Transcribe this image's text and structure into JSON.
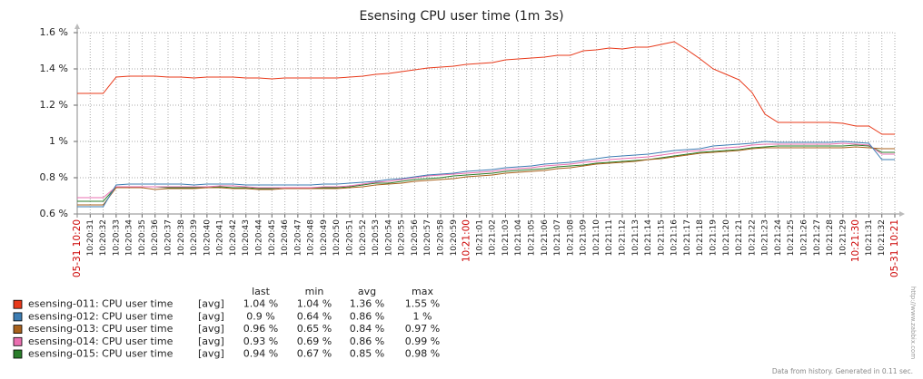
{
  "chart_data": {
    "type": "line",
    "title": "Esensing CPU user time (1m 3s)",
    "categories": [
      "05-31 10:20",
      "10:20:31",
      "10:20:32",
      "10:20:33",
      "10:20:34",
      "10:20:35",
      "10:20:36",
      "10:20:37",
      "10:20:38",
      "10:20:39",
      "10:20:40",
      "10:20:41",
      "10:20:42",
      "10:20:43",
      "10:20:44",
      "10:20:45",
      "10:20:46",
      "10:20:47",
      "10:20:48",
      "10:20:49",
      "10:20:50",
      "10:20:51",
      "10:20:52",
      "10:20:53",
      "10:20:54",
      "10:20:55",
      "10:20:56",
      "10:20:57",
      "10:20:58",
      "10:20:59",
      "10:21:00",
      "10:21:01",
      "10:21:02",
      "10:21:03",
      "10:21:04",
      "10:21:05",
      "10:21:06",
      "10:21:07",
      "10:21:08",
      "10:21:09",
      "10:21:10",
      "10:21:11",
      "10:21:12",
      "10:21:13",
      "10:21:14",
      "10:21:15",
      "10:21:16",
      "10:21:17",
      "10:21:18",
      "10:21:19",
      "10:21:20",
      "10:21:21",
      "10:21:22",
      "10:21:23",
      "10:21:24",
      "10:21:25",
      "10:21:26",
      "10:21:27",
      "10:21:28",
      "10:21:29",
      "10:21:30",
      "10:21:31",
      "10:21:32",
      "05-31 10:21"
    ],
    "ylim": [
      0.6,
      1.6
    ],
    "yticks": [
      {
        "value": 0.6,
        "label": "0.6 %"
      },
      {
        "value": 0.8,
        "label": "0.8 %"
      },
      {
        "value": 1,
        "label": "1 %"
      },
      {
        "value": 1.2,
        "label": "1.2 %"
      },
      {
        "value": 1.4,
        "label": "1.4 %"
      },
      {
        "value": 1.6,
        "label": "1.6 %"
      }
    ],
    "grid": true,
    "stats_columns": [
      "last",
      "min",
      "avg",
      "max"
    ],
    "series": [
      {
        "name": "esensing-011: CPU user time",
        "color": "#e8391a",
        "func": "[avg]",
        "stats": [
          "1.04 %",
          "1.04 %",
          "1.36 %",
          "1.55 %"
        ],
        "values": [
          1.265,
          1.265,
          1.265,
          1.355,
          1.36,
          1.36,
          1.36,
          1.355,
          1.355,
          1.35,
          1.355,
          1.355,
          1.355,
          1.35,
          1.35,
          1.345,
          1.35,
          1.35,
          1.35,
          1.35,
          1.35,
          1.355,
          1.36,
          1.37,
          1.375,
          1.385,
          1.395,
          1.405,
          1.41,
          1.415,
          1.425,
          1.43,
          1.435,
          1.45,
          1.455,
          1.46,
          1.465,
          1.475,
          1.475,
          1.5,
          1.505,
          1.515,
          1.51,
          1.52,
          1.52,
          1.535,
          1.55,
          1.505,
          1.455,
          1.4,
          1.37,
          1.34,
          1.27,
          1.15,
          1.105,
          1.105,
          1.105,
          1.105,
          1.105,
          1.1,
          1.085,
          1.085,
          1.04,
          1.04
        ]
      },
      {
        "name": "esensing-012: CPU user time",
        "color": "#3d7db3",
        "func": "[avg]",
        "stats": [
          "0.9 %",
          "0.64 %",
          "0.86 %",
          "1 %"
        ],
        "values": [
          0.64,
          0.64,
          0.64,
          0.76,
          0.765,
          0.765,
          0.765,
          0.765,
          0.765,
          0.76,
          0.765,
          0.765,
          0.765,
          0.76,
          0.76,
          0.76,
          0.76,
          0.76,
          0.76,
          0.765,
          0.765,
          0.77,
          0.775,
          0.78,
          0.79,
          0.795,
          0.805,
          0.815,
          0.82,
          0.825,
          0.835,
          0.84,
          0.845,
          0.855,
          0.86,
          0.865,
          0.875,
          0.88,
          0.885,
          0.895,
          0.905,
          0.915,
          0.92,
          0.925,
          0.93,
          0.94,
          0.95,
          0.955,
          0.96,
          0.975,
          0.98,
          0.985,
          0.99,
          1,
          0.995,
          0.995,
          0.995,
          0.995,
          0.995,
          1,
          0.995,
          0.99,
          0.9,
          0.9
        ]
      },
      {
        "name": "esensing-013: CPU user time",
        "color": "#a8611c",
        "func": "[avg]",
        "stats": [
          "0.96 %",
          "0.65 %",
          "0.84 %",
          "0.97 %"
        ],
        "values": [
          0.65,
          0.65,
          0.65,
          0.745,
          0.745,
          0.745,
          0.735,
          0.74,
          0.74,
          0.74,
          0.745,
          0.745,
          0.74,
          0.74,
          0.735,
          0.735,
          0.74,
          0.74,
          0.74,
          0.74,
          0.74,
          0.745,
          0.75,
          0.76,
          0.765,
          0.77,
          0.78,
          0.785,
          0.79,
          0.795,
          0.805,
          0.81,
          0.815,
          0.825,
          0.83,
          0.835,
          0.84,
          0.85,
          0.855,
          0.865,
          0.875,
          0.88,
          0.885,
          0.89,
          0.9,
          0.905,
          0.915,
          0.925,
          0.935,
          0.94,
          0.945,
          0.95,
          0.96,
          0.965,
          0.965,
          0.965,
          0.965,
          0.965,
          0.965,
          0.965,
          0.97,
          0.965,
          0.96,
          0.96
        ]
      },
      {
        "name": "esensing-014: CPU user time",
        "color": "#ea6fb0",
        "func": "[avg]",
        "stats": [
          "0.93 %",
          "0.69 %",
          "0.86 %",
          "0.99 %"
        ],
        "values": [
          0.69,
          0.69,
          0.69,
          0.75,
          0.75,
          0.75,
          0.75,
          0.75,
          0.75,
          0.75,
          0.75,
          0.755,
          0.755,
          0.75,
          0.745,
          0.745,
          0.745,
          0.745,
          0.745,
          0.75,
          0.75,
          0.755,
          0.765,
          0.775,
          0.78,
          0.79,
          0.8,
          0.81,
          0.815,
          0.82,
          0.825,
          0.83,
          0.835,
          0.845,
          0.85,
          0.855,
          0.865,
          0.87,
          0.875,
          0.885,
          0.89,
          0.9,
          0.905,
          0.91,
          0.915,
          0.925,
          0.935,
          0.945,
          0.95,
          0.96,
          0.965,
          0.97,
          0.98,
          0.985,
          0.985,
          0.985,
          0.985,
          0.985,
          0.985,
          0.99,
          0.985,
          0.98,
          0.93,
          0.93
        ]
      },
      {
        "name": "esensing-015: CPU user time",
        "color": "#2a7d2a",
        "func": "[avg]",
        "stats": [
          "0.94 %",
          "0.67 %",
          "0.85 %",
          "0.98 %"
        ],
        "values": [
          0.67,
          0.67,
          0.67,
          0.75,
          0.75,
          0.75,
          0.75,
          0.745,
          0.745,
          0.745,
          0.745,
          0.75,
          0.745,
          0.745,
          0.74,
          0.74,
          0.745,
          0.745,
          0.745,
          0.745,
          0.745,
          0.75,
          0.76,
          0.77,
          0.77,
          0.78,
          0.79,
          0.795,
          0.8,
          0.81,
          0.815,
          0.82,
          0.825,
          0.835,
          0.84,
          0.845,
          0.85,
          0.86,
          0.865,
          0.87,
          0.88,
          0.885,
          0.89,
          0.895,
          0.9,
          0.91,
          0.92,
          0.93,
          0.94,
          0.945,
          0.95,
          0.955,
          0.965,
          0.97,
          0.975,
          0.975,
          0.975,
          0.975,
          0.975,
          0.975,
          0.98,
          0.975,
          0.94,
          0.94
        ]
      }
    ],
    "footer": "Data from history. Generated in 0.11 sec.",
    "watermark": "http://www.zabbix.com"
  }
}
